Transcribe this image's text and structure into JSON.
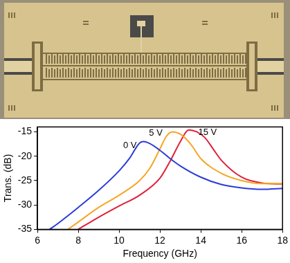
{
  "chart_data": {
    "type": "line",
    "xlabel": "Frequency (GHz)",
    "ylabel": "Trans. (dB)",
    "xlim": [
      6,
      18
    ],
    "xticks": [
      6,
      8,
      10,
      12,
      14,
      16,
      18
    ],
    "ylim": [
      -35,
      -14
    ],
    "yticks": [
      -35,
      -30,
      -25,
      -20,
      -15
    ],
    "grid": false,
    "series": [
      {
        "name": "0 V",
        "color": "#2b3bd9",
        "x": [
          6.6,
          7,
          8,
          9,
          10,
          10.5,
          11,
          11.2,
          11.5,
          12,
          12.5,
          13,
          14,
          15,
          16,
          17,
          18
        ],
        "values": [
          -35,
          -33.8,
          -30.5,
          -27,
          -23,
          -20.5,
          -17.3,
          -17,
          -17.4,
          -18.8,
          -20.5,
          -22,
          -24.3,
          -25.8,
          -26.5,
          -26.8,
          -26.6
        ]
      },
      {
        "name": "5 V",
        "color": "#f5a623",
        "x": [
          7.5,
          8,
          9,
          10,
          11,
          11.5,
          12,
          12.3,
          12.6,
          13,
          13.5,
          14,
          15,
          16,
          17,
          18
        ],
        "values": [
          -35,
          -33.5,
          -30.5,
          -28,
          -25,
          -22.5,
          -18.5,
          -16,
          -15,
          -15.5,
          -17.5,
          -20.5,
          -23.5,
          -25,
          -25.6,
          -25.6
        ]
      },
      {
        "name": "15 V",
        "color": "#e0203a",
        "x": [
          8,
          9,
          10,
          11,
          12,
          12.5,
          13,
          13.4,
          13.8,
          14.2,
          14.6,
          15,
          16,
          17,
          18
        ],
        "values": [
          -35,
          -32.5,
          -30.2,
          -28,
          -24.5,
          -21,
          -17,
          -14.6,
          -15,
          -16.2,
          -18.5,
          -20.8,
          -24.3,
          -25.5,
          -25.7
        ]
      }
    ]
  }
}
